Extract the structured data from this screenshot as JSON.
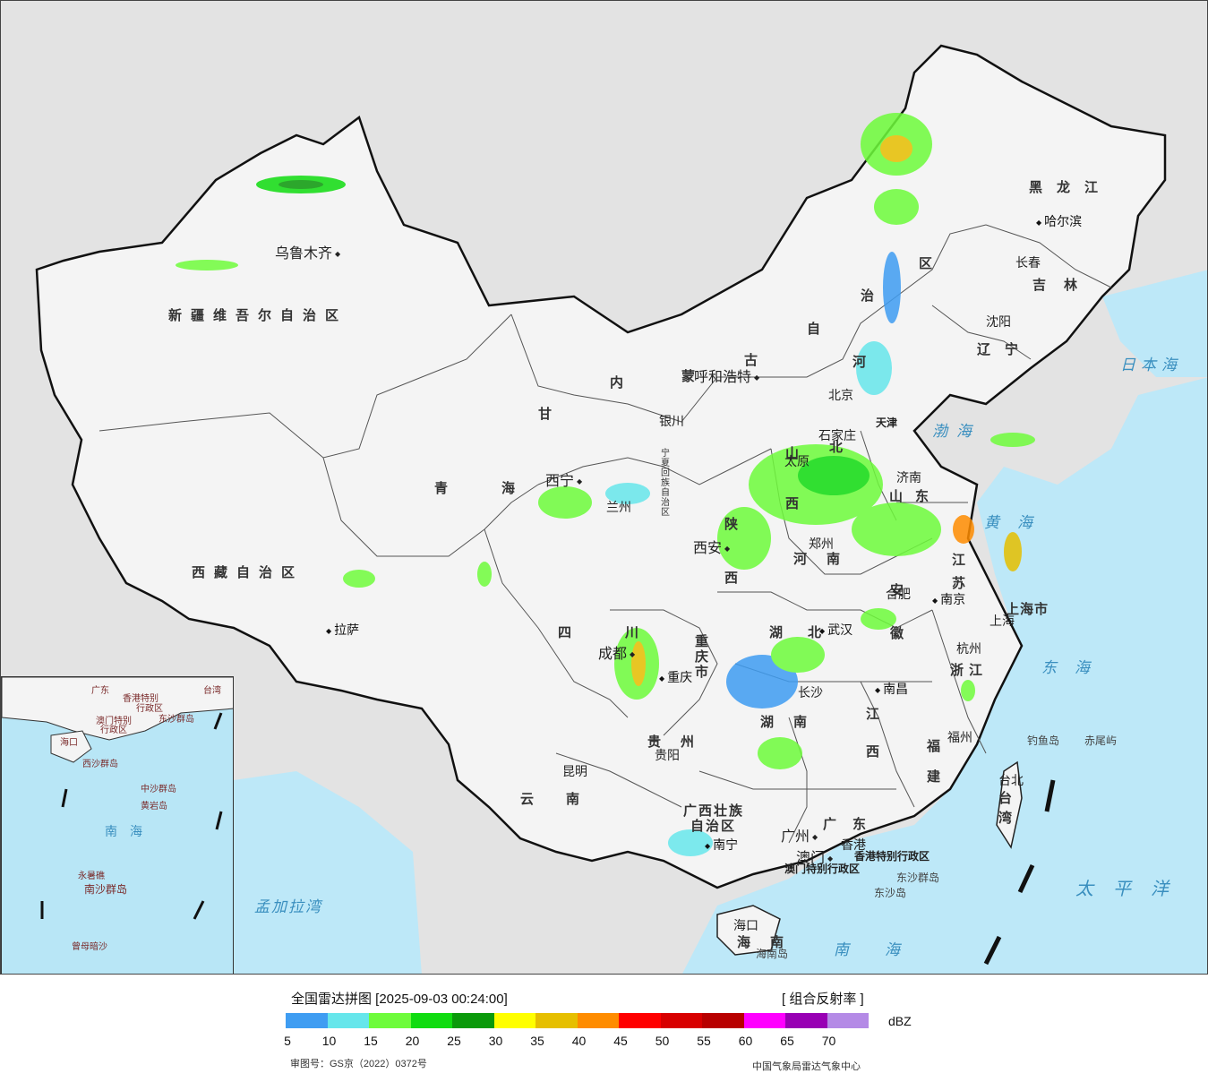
{
  "map": {
    "provinces": [
      {
        "id": "xinjiang",
        "name": "新疆维吾尔自治区"
      },
      {
        "id": "xizang",
        "name": "西藏自治区"
      },
      {
        "id": "qinghai",
        "name": "青海"
      },
      {
        "id": "gansu",
        "name": "甘"
      },
      {
        "id": "neimenggu_a",
        "name": "内"
      },
      {
        "id": "neimenggu_b",
        "name": "蒙"
      },
      {
        "id": "neimenggu_c",
        "name": "古"
      },
      {
        "id": "neimenggu_d",
        "name": "自"
      },
      {
        "id": "neimenggu_e",
        "name": "治"
      },
      {
        "id": "neimenggu_f",
        "name": "区"
      },
      {
        "id": "heilongjiang",
        "name": "黑龙江"
      },
      {
        "id": "jilin",
        "name": "吉林"
      },
      {
        "id": "liaoning",
        "name": "辽宁"
      },
      {
        "id": "hebei_a",
        "name": "河"
      },
      {
        "id": "hebei_b",
        "name": "北"
      },
      {
        "id": "shanxi",
        "name": "山西"
      },
      {
        "id": "shandong",
        "name": "山东"
      },
      {
        "id": "henan",
        "name": "河南"
      },
      {
        "id": "shaanxi",
        "name": "陕西"
      },
      {
        "id": "ningxia",
        "name": "宁夏回族自治区"
      },
      {
        "id": "sichuan",
        "name": "四川"
      },
      {
        "id": "chongqing",
        "name": "重庆市"
      },
      {
        "id": "hubei",
        "name": "湖北"
      },
      {
        "id": "hunan",
        "name": "湖南"
      },
      {
        "id": "anhui",
        "name": "安徽"
      },
      {
        "id": "jiangsu",
        "name": "江苏"
      },
      {
        "id": "zhejiang",
        "name": "浙江"
      },
      {
        "id": "jiangxi",
        "name": "江西"
      },
      {
        "id": "fujian",
        "name": "福建"
      },
      {
        "id": "guizhou",
        "name": "贵州"
      },
      {
        "id": "yunnan",
        "name": "云南"
      },
      {
        "id": "guangxi_a",
        "name": "广西壮族"
      },
      {
        "id": "guangxi_b",
        "name": "自治区"
      },
      {
        "id": "guangdong",
        "name": "广东"
      },
      {
        "id": "hainan",
        "name": "海南"
      },
      {
        "id": "taiwan",
        "name": "台湾"
      },
      {
        "id": "shanghai",
        "name": "上海市"
      },
      {
        "id": "tianjin",
        "name": "天津"
      },
      {
        "id": "hk",
        "name": "香港特别行政区"
      },
      {
        "id": "macau",
        "name": "澳门特别行政区"
      }
    ],
    "cities": [
      {
        "id": "urumqi",
        "name": "乌鲁木齐"
      },
      {
        "id": "lhasa",
        "name": "拉萨"
      },
      {
        "id": "xining",
        "name": "西宁"
      },
      {
        "id": "lanzhou",
        "name": "兰州"
      },
      {
        "id": "yinchuan",
        "name": "银川"
      },
      {
        "id": "hohhot",
        "name": "呼和浩特"
      },
      {
        "id": "harbin",
        "name": "哈尔滨"
      },
      {
        "id": "changchun",
        "name": "长春"
      },
      {
        "id": "shenyang",
        "name": "沈阳"
      },
      {
        "id": "beijing",
        "name": "北京"
      },
      {
        "id": "shijiazhuang",
        "name": "石家庄"
      },
      {
        "id": "taiyuan",
        "name": "太原"
      },
      {
        "id": "jinan",
        "name": "济南"
      },
      {
        "id": "zhengzhou",
        "name": "郑州"
      },
      {
        "id": "xian",
        "name": "西安"
      },
      {
        "id": "chengdu",
        "name": "成都"
      },
      {
        "id": "chongqing_c",
        "name": "重庆"
      },
      {
        "id": "wuhan",
        "name": "武汉"
      },
      {
        "id": "hefei",
        "name": "合肥"
      },
      {
        "id": "nanjing",
        "name": "南京"
      },
      {
        "id": "shanghai_c",
        "name": "上海"
      },
      {
        "id": "hangzhou",
        "name": "杭州"
      },
      {
        "id": "changsha",
        "name": "长沙"
      },
      {
        "id": "nanchang",
        "name": "南昌"
      },
      {
        "id": "fuzhou",
        "name": "福州"
      },
      {
        "id": "guiyang",
        "name": "贵阳"
      },
      {
        "id": "kunming",
        "name": "昆明"
      },
      {
        "id": "nanning",
        "name": "南宁"
      },
      {
        "id": "guangzhou",
        "name": "广州"
      },
      {
        "id": "hongkong",
        "name": "香港"
      },
      {
        "id": "macau_c",
        "name": "澳门"
      },
      {
        "id": "haikou",
        "name": "海口"
      },
      {
        "id": "taibei",
        "name": "台北"
      }
    ],
    "seas": [
      {
        "id": "bohai",
        "name": "渤海"
      },
      {
        "id": "huanghai",
        "name": "黄海"
      },
      {
        "id": "donghai",
        "name": "东海"
      },
      {
        "id": "nanhai",
        "name": "南海"
      },
      {
        "id": "taipingyang",
        "name": "太平洋"
      },
      {
        "id": "ribenhai",
        "name": "日本海"
      },
      {
        "id": "mengjiala",
        "name": "孟加拉湾"
      }
    ],
    "islands": [
      {
        "id": "diaoyu",
        "name": "钓鱼岛"
      },
      {
        "id": "chiwei",
        "name": "赤尾屿"
      },
      {
        "id": "dongsha_qd",
        "name": "东沙群岛"
      },
      {
        "id": "dongsha_d",
        "name": "东沙岛"
      },
      {
        "id": "hainan_d",
        "name": "海南岛"
      }
    ],
    "inset_labels": [
      {
        "id": "in1",
        "name": "广东"
      },
      {
        "id": "in2",
        "name": "香港特别"
      },
      {
        "id": "in3",
        "name": "行政区"
      },
      {
        "id": "in4",
        "name": "澳门特别"
      },
      {
        "id": "in5",
        "name": "行政区"
      },
      {
        "id": "in6",
        "name": "台湾"
      },
      {
        "id": "in7",
        "name": "东沙群岛"
      },
      {
        "id": "in8",
        "name": "海口"
      },
      {
        "id": "in9",
        "name": "西沙群岛"
      },
      {
        "id": "in10",
        "name": "中沙群岛"
      },
      {
        "id": "in11",
        "name": "黄岩岛"
      },
      {
        "id": "in12",
        "name": "南海"
      },
      {
        "id": "in13",
        "name": "南沙群岛"
      },
      {
        "id": "in14",
        "name": "永暑礁"
      },
      {
        "id": "in15",
        "name": "曾母暗沙"
      }
    ]
  },
  "legend": {
    "title": "全国雷达拼图 [2025-09-03 00:24:00]",
    "product": "[ 组合反射率 ]",
    "unit": "dBZ",
    "ticks": [
      "5",
      "10",
      "15",
      "20",
      "25",
      "30",
      "35",
      "40",
      "45",
      "50",
      "55",
      "60",
      "65",
      "70"
    ],
    "colors": [
      "#3f9df2",
      "#66e6eb",
      "#6efc3b",
      "#10dc10",
      "#0a9a0a",
      "#ffff00",
      "#e6bf00",
      "#ff8c00",
      "#ff0000",
      "#d80000",
      "#b80000",
      "#ff00ff",
      "#9800b4",
      "#b48ae6"
    ],
    "approval": "审图号：GS京（2022）0372号",
    "source": "中国气象局雷达气象中心"
  }
}
